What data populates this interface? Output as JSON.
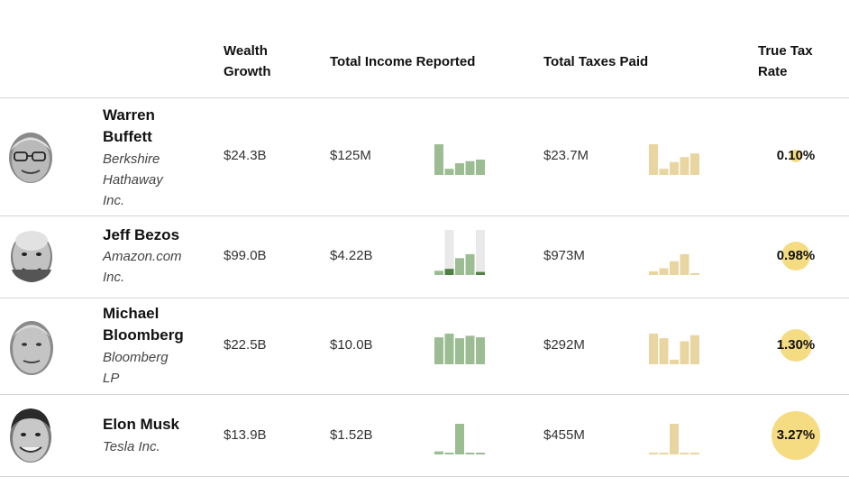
{
  "headers": {
    "wealth_growth": [
      "Wealth",
      "Growth"
    ],
    "total_income": "Total Income Reported",
    "total_taxes": "Total Taxes Paid",
    "true_tax_rate": [
      "True Tax",
      "Rate"
    ]
  },
  "colors": {
    "income_bar": "#9cbd93",
    "income_bar_dark": "#4f7f46",
    "income_bar_bg": "#e9e9e9",
    "tax_bar": "#e8d5a0",
    "rate_circle": "#f5dc83"
  },
  "rows": [
    {
      "name_lines": [
        "Warren",
        "Buffett"
      ],
      "company_lines": [
        "Berkshire",
        "Hathaway",
        "Inc."
      ],
      "avatar_icon": "warren-buffett-portrait-icon",
      "wealth_growth": "$24.3B",
      "total_income": "$125M",
      "total_taxes": "$23.7M",
      "true_tax_rate": "0.10%",
      "rate_value": 0.1,
      "income_bars": [
        1.0,
        0.2,
        0.38,
        0.45,
        0.5
      ],
      "tax_bars": [
        1.0,
        0.2,
        0.42,
        0.58,
        0.7
      ]
    },
    {
      "name_lines": [
        "Jeff Bezos"
      ],
      "company_lines": [
        "Amazon.com",
        "Inc."
      ],
      "avatar_icon": "jeff-bezos-portrait-icon",
      "wealth_growth": "$99.0B",
      "total_income": "$4.22B",
      "total_taxes": "$973M",
      "true_tax_rate": "0.98%",
      "rate_value": 0.98,
      "income_bars": [
        0.14,
        0.2,
        0.55,
        0.68,
        0.1
      ],
      "income_bars_dark": [
        false,
        true,
        false,
        false,
        true
      ],
      "income_bars_bg": [
        0,
        1,
        0,
        0,
        1
      ],
      "tax_bars": [
        0.12,
        0.22,
        0.45,
        0.68,
        0.06
      ]
    },
    {
      "name_lines": [
        "Michael",
        "Bloomberg"
      ],
      "company_lines": [
        "Bloomberg",
        "LP"
      ],
      "avatar_icon": "michael-bloomberg-portrait-icon",
      "wealth_growth": "$22.5B",
      "total_income": "$10.0B",
      "total_taxes": "$292M",
      "true_tax_rate": "1.30%",
      "rate_value": 1.3,
      "income_bars": [
        0.88,
        1.0,
        0.85,
        0.93,
        0.88
      ],
      "tax_bars": [
        1.0,
        0.85,
        0.15,
        0.75,
        0.95
      ]
    },
    {
      "name_lines": [
        "Elon Musk"
      ],
      "company_lines": [
        "Tesla Inc."
      ],
      "avatar_icon": "elon-musk-portrait-icon",
      "wealth_growth": "$13.9B",
      "total_income": "$1.52B",
      "total_taxes": "$455M",
      "true_tax_rate": "3.27%",
      "rate_value": 3.27,
      "income_bars": [
        0.1,
        0.03,
        1.0,
        0.03,
        0.03
      ],
      "tax_bars": [
        0.04,
        0.03,
        1.0,
        0.03,
        0.03
      ]
    }
  ]
}
